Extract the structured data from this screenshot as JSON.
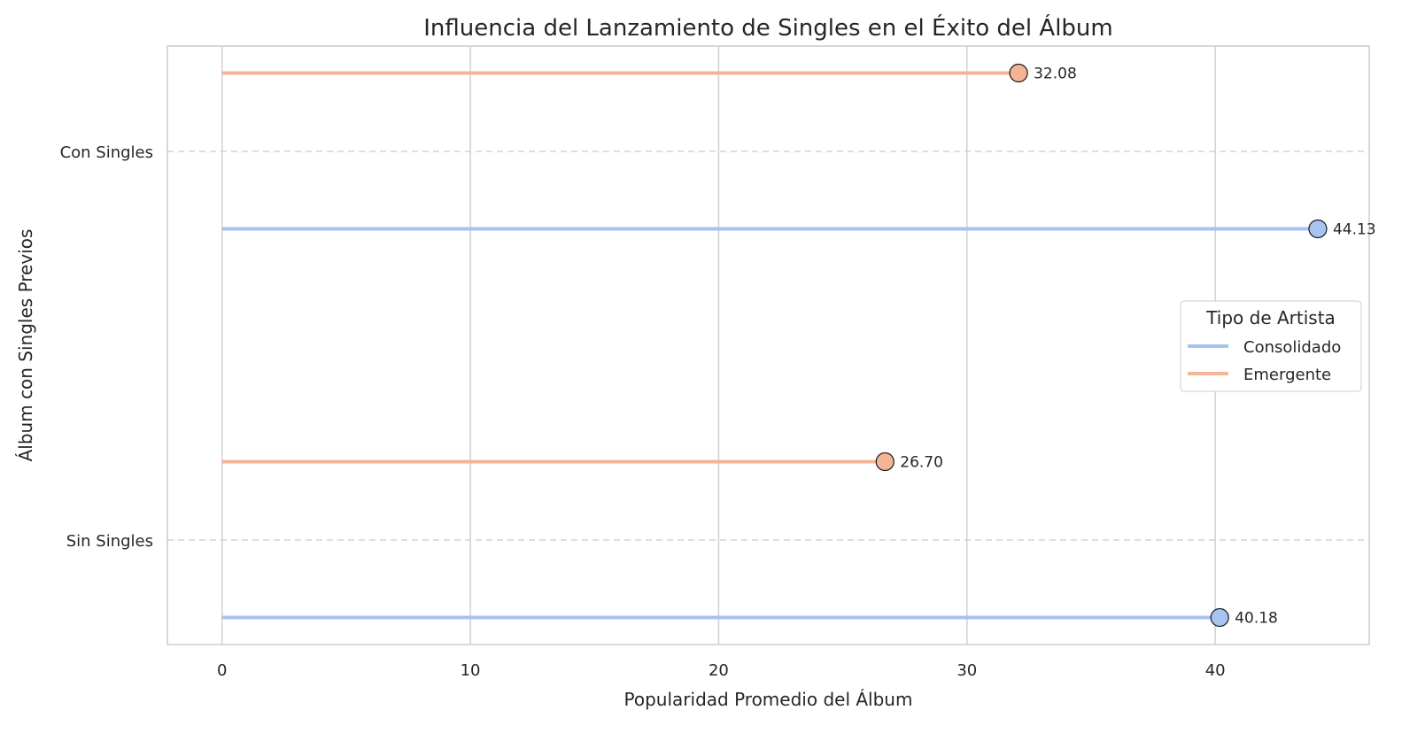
{
  "chart_data": {
    "type": "lollipop",
    "orientation": "horizontal",
    "title": "Influencia del Lanzamiento de Singles en el Éxito del Álbum",
    "xlabel": "Popularidad Promedio del Álbum",
    "ylabel": "Álbum con Singles Previos",
    "xlim": [
      -2.2,
      46.2
    ],
    "xticks": [
      0,
      10,
      20,
      30,
      40
    ],
    "categories": [
      "Con Singles",
      "Sin Singles"
    ],
    "legend": {
      "title": "Tipo de Artista",
      "placement": "center-right"
    },
    "series": [
      {
        "name": "Consolidado",
        "color": "#a6c3f2",
        "values": [
          44.13,
          40.18
        ],
        "labels": [
          "44.13",
          "40.18"
        ]
      },
      {
        "name": "Emergente",
        "color": "#f4b596",
        "values": [
          32.08,
          26.7
        ],
        "labels": [
          "32.08",
          "26.70"
        ]
      }
    ],
    "grid": {
      "x": true,
      "y": "dashed"
    }
  }
}
